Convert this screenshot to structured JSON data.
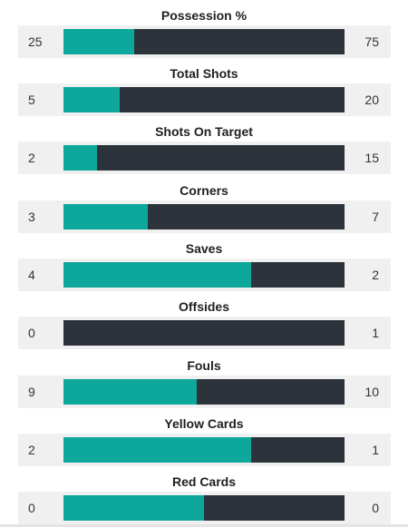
{
  "stats": [
    {
      "label": "Possession %",
      "home": "25",
      "away": "75",
      "home_share": 0.25
    },
    {
      "label": "Total Shots",
      "home": "5",
      "away": "20",
      "home_share": 0.2
    },
    {
      "label": "Shots On Target",
      "home": "2",
      "away": "15",
      "home_share": 0.118
    },
    {
      "label": "Corners",
      "home": "3",
      "away": "7",
      "home_share": 0.3
    },
    {
      "label": "Saves",
      "home": "4",
      "away": "2",
      "home_share": 0.667
    },
    {
      "label": "Offsides",
      "home": "0",
      "away": "1",
      "home_share": 0
    },
    {
      "label": "Fouls",
      "home": "9",
      "away": "10",
      "home_share": 0.474
    },
    {
      "label": "Yellow Cards",
      "home": "2",
      "away": "1",
      "home_share": 0.667
    },
    {
      "label": "Red Cards",
      "home": "0",
      "away": "0",
      "home_share": 0.5
    }
  ],
  "colors": {
    "home": "#0da79c",
    "away": "#2c333b",
    "row_background": "#f0f0f0"
  }
}
